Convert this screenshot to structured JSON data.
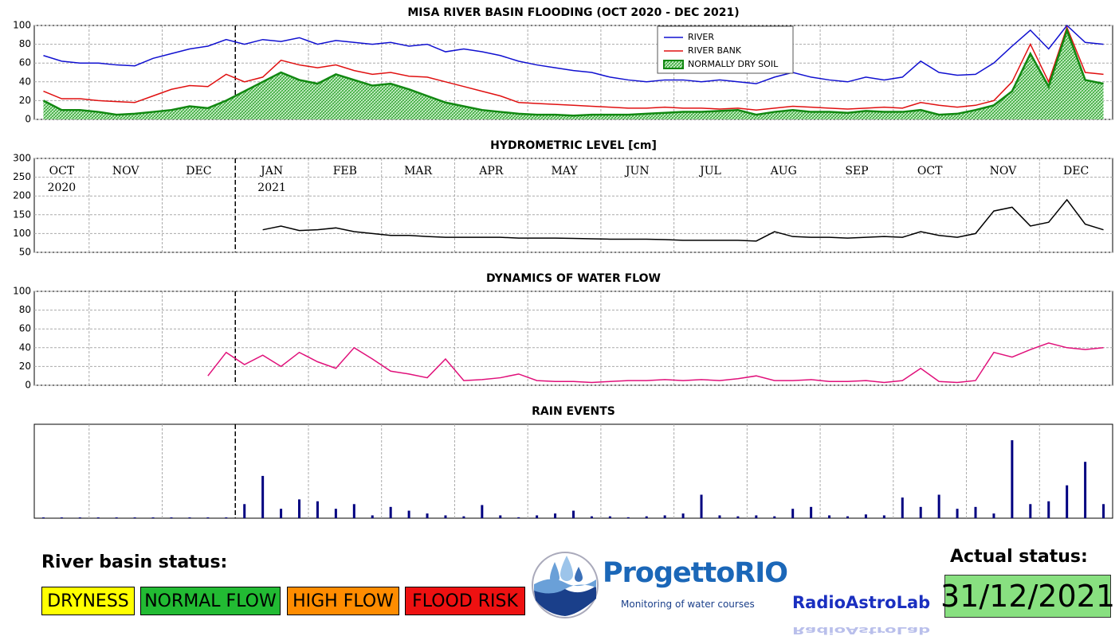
{
  "chart_data": [
    {
      "type": "line",
      "title": "MISA RIVER BASIN FLOODING (OCT 2020 - DEC 2021)",
      "x": [
        "2020-10",
        "2020-10",
        "2020-10",
        "2020-11",
        "2020-11",
        "2020-11",
        "2020-11",
        "2020-12",
        "2020-12",
        "2020-12",
        "2020-12",
        "2021-01",
        "2021-01",
        "2021-01",
        "2021-01",
        "2021-02",
        "2021-02",
        "2021-02",
        "2021-02",
        "2021-03",
        "2021-03",
        "2021-03",
        "2021-03",
        "2021-04",
        "2021-04",
        "2021-04",
        "2021-04",
        "2021-05",
        "2021-05",
        "2021-05",
        "2021-05",
        "2021-06",
        "2021-06",
        "2021-06",
        "2021-06",
        "2021-07",
        "2021-07",
        "2021-07",
        "2021-07",
        "2021-08",
        "2021-08",
        "2021-08",
        "2021-08",
        "2021-09",
        "2021-09",
        "2021-09",
        "2021-09",
        "2021-10",
        "2021-10",
        "2021-10",
        "2021-10",
        "2021-11",
        "2021-11",
        "2021-11",
        "2021-11",
        "2021-12",
        "2021-12",
        "2021-12",
        "2021-12"
      ],
      "series": [
        {
          "name": "RIVER",
          "color": "#1010d0",
          "values": [
            68,
            62,
            60,
            60,
            58,
            57,
            65,
            70,
            75,
            78,
            85,
            80,
            85,
            83,
            87,
            80,
            84,
            82,
            80,
            82,
            78,
            80,
            72,
            75,
            72,
            68,
            62,
            58,
            55,
            52,
            50,
            45,
            42,
            40,
            42,
            42,
            40,
            42,
            40,
            38,
            45,
            50,
            45,
            42,
            40,
            45,
            42,
            45,
            62,
            50,
            47,
            48,
            60,
            78,
            95,
            75,
            100,
            82,
            80
          ]
        },
        {
          "name": "RIVER BANK",
          "color": "#e01010",
          "values": [
            30,
            22,
            22,
            20,
            19,
            18,
            25,
            32,
            36,
            35,
            48,
            40,
            45,
            63,
            58,
            55,
            58,
            52,
            48,
            50,
            46,
            45,
            40,
            35,
            30,
            25,
            18,
            17,
            16,
            15,
            14,
            13,
            12,
            12,
            13,
            12,
            12,
            11,
            12,
            10,
            12,
            14,
            13,
            12,
            11,
            12,
            13,
            12,
            18,
            15,
            13,
            15,
            20,
            40,
            80,
            40,
            98,
            50,
            48
          ]
        },
        {
          "name": "NORMALLY DRY SOIL",
          "color": "#118811",
          "area": true,
          "values": [
            20,
            10,
            10,
            8,
            5,
            6,
            8,
            10,
            14,
            12,
            20,
            30,
            40,
            50,
            42,
            38,
            48,
            42,
            36,
            38,
            32,
            25,
            18,
            14,
            10,
            8,
            6,
            5,
            5,
            4,
            5,
            5,
            5,
            6,
            7,
            8,
            8,
            9,
            10,
            5,
            8,
            10,
            8,
            8,
            7,
            9,
            8,
            8,
            10,
            5,
            6,
            10,
            15,
            30,
            70,
            35,
            95,
            42,
            38
          ]
        }
      ],
      "ylim": [
        0,
        100
      ],
      "yticks": [
        0,
        20,
        40,
        60,
        80,
        100
      ],
      "grid": true,
      "legend": "upper center"
    },
    {
      "type": "line",
      "title": "HYDROMETRIC LEVEL [cm]",
      "x": [
        "2020-10",
        "2020-10",
        "2020-10",
        "2020-11",
        "2020-11",
        "2020-11",
        "2020-11",
        "2020-12",
        "2020-12",
        "2020-12",
        "2020-12",
        "2021-01",
        "2021-01",
        "2021-01",
        "2021-01",
        "2021-02",
        "2021-02",
        "2021-02",
        "2021-02",
        "2021-03",
        "2021-03",
        "2021-03",
        "2021-03",
        "2021-04",
        "2021-04",
        "2021-04",
        "2021-04",
        "2021-05",
        "2021-05",
        "2021-05",
        "2021-05",
        "2021-06",
        "2021-06",
        "2021-06",
        "2021-06",
        "2021-07",
        "2021-07",
        "2021-07",
        "2021-07",
        "2021-08",
        "2021-08",
        "2021-08",
        "2021-08",
        "2021-09",
        "2021-09",
        "2021-09",
        "2021-09",
        "2021-10",
        "2021-10",
        "2021-10",
        "2021-10",
        "2021-11",
        "2021-11",
        "2021-11",
        "2021-11",
        "2021-12",
        "2021-12",
        "2021-12",
        "2021-12"
      ],
      "categories": [
        "OCT",
        "NOV",
        "DEC",
        "JAN",
        "FEB",
        "MAR",
        "APR",
        "MAY",
        "JUN",
        "JUL",
        "AUG",
        "SEP",
        "OCT",
        "NOV",
        "DEC"
      ],
      "year_labels": [
        "2020",
        null,
        null,
        "2021",
        null,
        null,
        null,
        null,
        null,
        null,
        null,
        null,
        null,
        null,
        null
      ],
      "series": [
        {
          "name": "HYDROMETRIC LEVEL",
          "color": "#000000",
          "values": [
            null,
            null,
            null,
            null,
            null,
            null,
            null,
            null,
            null,
            null,
            null,
            null,
            110,
            120,
            108,
            110,
            115,
            105,
            100,
            95,
            95,
            92,
            90,
            90,
            90,
            90,
            88,
            88,
            88,
            87,
            86,
            85,
            85,
            85,
            84,
            82,
            82,
            82,
            82,
            80,
            105,
            92,
            90,
            90,
            88,
            90,
            92,
            90,
            105,
            95,
            90,
            100,
            160,
            170,
            120,
            130,
            190,
            125,
            110
          ]
        }
      ],
      "ylim": [
        50,
        300
      ],
      "yticks": [
        50,
        100,
        150,
        200,
        250,
        300
      ],
      "grid": true
    },
    {
      "type": "line",
      "title": "DYNAMICS OF WATER FLOW",
      "x": [
        "2020-10",
        "2020-10",
        "2020-10",
        "2020-11",
        "2020-11",
        "2020-11",
        "2020-11",
        "2020-12",
        "2020-12",
        "2020-12",
        "2020-12",
        "2021-01",
        "2021-01",
        "2021-01",
        "2021-01",
        "2021-02",
        "2021-02",
        "2021-02",
        "2021-02",
        "2021-03",
        "2021-03",
        "2021-03",
        "2021-03",
        "2021-04",
        "2021-04",
        "2021-04",
        "2021-04",
        "2021-05",
        "2021-05",
        "2021-05",
        "2021-05",
        "2021-06",
        "2021-06",
        "2021-06",
        "2021-06",
        "2021-07",
        "2021-07",
        "2021-07",
        "2021-07",
        "2021-08",
        "2021-08",
        "2021-08",
        "2021-08",
        "2021-09",
        "2021-09",
        "2021-09",
        "2021-09",
        "2021-10",
        "2021-10",
        "2021-10",
        "2021-10",
        "2021-11",
        "2021-11",
        "2021-11",
        "2021-11",
        "2021-12",
        "2021-12",
        "2021-12",
        "2021-12"
      ],
      "series": [
        {
          "name": "WATER FLOW",
          "color": "#e0107a",
          "values": [
            null,
            null,
            null,
            null,
            null,
            null,
            null,
            null,
            null,
            10,
            35,
            22,
            32,
            20,
            35,
            25,
            18,
            40,
            28,
            15,
            12,
            8,
            28,
            5,
            6,
            8,
            12,
            5,
            4,
            4,
            3,
            4,
            5,
            5,
            6,
            5,
            6,
            5,
            7,
            10,
            5,
            5,
            6,
            4,
            4,
            5,
            3,
            5,
            18,
            4,
            3,
            5,
            35,
            30,
            38,
            45,
            40,
            38,
            40
          ]
        }
      ],
      "ylim": [
        0,
        100
      ],
      "yticks": [
        0,
        20,
        40,
        60,
        80,
        100
      ],
      "grid": true
    },
    {
      "type": "bar",
      "title": "RAIN EVENTS",
      "x": [
        "2020-10",
        "2020-10",
        "2020-10",
        "2020-11",
        "2020-11",
        "2020-11",
        "2020-11",
        "2020-12",
        "2020-12",
        "2020-12",
        "2020-12",
        "2021-01",
        "2021-01",
        "2021-01",
        "2021-01",
        "2021-02",
        "2021-02",
        "2021-02",
        "2021-02",
        "2021-03",
        "2021-03",
        "2021-03",
        "2021-03",
        "2021-04",
        "2021-04",
        "2021-04",
        "2021-04",
        "2021-05",
        "2021-05",
        "2021-05",
        "2021-05",
        "2021-06",
        "2021-06",
        "2021-06",
        "2021-06",
        "2021-07",
        "2021-07",
        "2021-07",
        "2021-07",
        "2021-08",
        "2021-08",
        "2021-08",
        "2021-08",
        "2021-09",
        "2021-09",
        "2021-09",
        "2021-09",
        "2021-10",
        "2021-10",
        "2021-10",
        "2021-10",
        "2021-11",
        "2021-11",
        "2021-11",
        "2021-11",
        "2021-12",
        "2021-12",
        "2021-12",
        "2021-12"
      ],
      "values": [
        0,
        0,
        0,
        0,
        0,
        0,
        0,
        0,
        0,
        0,
        0,
        15,
        45,
        10,
        20,
        18,
        10,
        15,
        3,
        12,
        8,
        5,
        3,
        2,
        14,
        3,
        1,
        3,
        5,
        8,
        2,
        2,
        1,
        2,
        3,
        5,
        25,
        3,
        2,
        3,
        2,
        10,
        12,
        3,
        2,
        4,
        3,
        22,
        12,
        25,
        10,
        12,
        5,
        83,
        15,
        18,
        35,
        60,
        15
      ],
      "color": "#000080",
      "ylim": [
        0,
        100
      ],
      "grid": false
    }
  ],
  "footer": {
    "status_title": "River basin status:",
    "statuses": [
      {
        "label": "DRYNESS",
        "color": "#ffff00"
      },
      {
        "label": "NORMAL FLOW",
        "color": "#22bb33"
      },
      {
        "label": "HIGH FLOW",
        "color": "#ff8c00"
      },
      {
        "label": "FLOOD RISK",
        "color": "#ee1111"
      }
    ],
    "logo_title": "ProgettoRIO",
    "logo_subtitle": "Monitoring of water courses",
    "brand": "RadioAstroLab",
    "actual_title": "Actual status:",
    "actual_value": "31/12/2021",
    "actual_color": "#88e080"
  }
}
